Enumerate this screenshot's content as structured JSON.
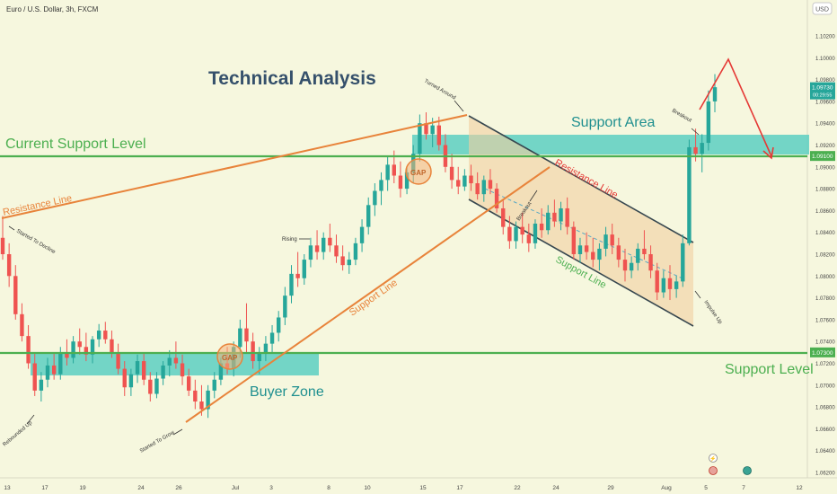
{
  "header": {
    "symbol_title": "Euro / U.S. Dollar, 3h, FXCM",
    "currency": "USD"
  },
  "chart_data": {
    "type": "candlestick",
    "title": "Technical Analysis",
    "x_ticks": [
      "13",
      "17",
      "19",
      "24",
      "26",
      "Jul",
      "3",
      "8",
      "10",
      "15",
      "17",
      "22",
      "24",
      "29",
      "Aug",
      "5",
      "7",
      "12"
    ],
    "y_ticks": [
      1.062,
      1.064,
      1.066,
      1.068,
      1.07,
      1.072,
      1.074,
      1.076,
      1.078,
      1.08,
      1.082,
      1.084,
      1.086,
      1.088,
      1.09,
      1.092,
      1.094,
      1.096,
      1.098,
      1.1,
      1.102
    ],
    "ylim": [
      1.061,
      1.1035
    ],
    "last_price": 1.0973,
    "last_price_label": "1.09730",
    "countdown_label": "00:29:55",
    "current_support_price": 1.091,
    "current_support_price_label": "1.09100",
    "support_price": 1.073,
    "support_price_label": "1.07300",
    "candles": [
      {
        "o": 1.0835,
        "h": 1.0855,
        "l": 1.0815,
        "c": 1.082
      },
      {
        "o": 1.082,
        "h": 1.083,
        "l": 1.079,
        "c": 1.08
      },
      {
        "o": 1.08,
        "h": 1.081,
        "l": 1.076,
        "c": 1.0765
      },
      {
        "o": 1.0765,
        "h": 1.0775,
        "l": 1.074,
        "c": 1.0745
      },
      {
        "o": 1.0745,
        "h": 1.0755,
        "l": 1.0715,
        "c": 1.072
      },
      {
        "o": 1.072,
        "h": 1.073,
        "l": 1.069,
        "c": 1.0695
      },
      {
        "o": 1.0695,
        "h": 1.0712,
        "l": 1.0685,
        "c": 1.0705
      },
      {
        "o": 1.0705,
        "h": 1.0725,
        "l": 1.0698,
        "c": 1.0718
      },
      {
        "o": 1.0718,
        "h": 1.073,
        "l": 1.0705,
        "c": 1.071
      },
      {
        "o": 1.071,
        "h": 1.0735,
        "l": 1.0705,
        "c": 1.073
      },
      {
        "o": 1.073,
        "h": 1.0742,
        "l": 1.0718,
        "c": 1.0725
      },
      {
        "o": 1.0725,
        "h": 1.0745,
        "l": 1.072,
        "c": 1.074
      },
      {
        "o": 1.074,
        "h": 1.0752,
        "l": 1.0728,
        "c": 1.0735
      },
      {
        "o": 1.0735,
        "h": 1.0748,
        "l": 1.0722,
        "c": 1.0728
      },
      {
        "o": 1.0728,
        "h": 1.0745,
        "l": 1.072,
        "c": 1.0742
      },
      {
        "o": 1.0742,
        "h": 1.0756,
        "l": 1.0735,
        "c": 1.075
      },
      {
        "o": 1.075,
        "h": 1.0758,
        "l": 1.0738,
        "c": 1.0742
      },
      {
        "o": 1.0742,
        "h": 1.075,
        "l": 1.0725,
        "c": 1.073
      },
      {
        "o": 1.073,
        "h": 1.0738,
        "l": 1.071,
        "c": 1.0715
      },
      {
        "o": 1.0715,
        "h": 1.0722,
        "l": 1.069,
        "c": 1.0698
      },
      {
        "o": 1.0698,
        "h": 1.0715,
        "l": 1.069,
        "c": 1.071
      },
      {
        "o": 1.071,
        "h": 1.0728,
        "l": 1.0702,
        "c": 1.0722
      },
      {
        "o": 1.0722,
        "h": 1.073,
        "l": 1.07,
        "c": 1.0705
      },
      {
        "o": 1.0705,
        "h": 1.0712,
        "l": 1.0685,
        "c": 1.0692
      },
      {
        "o": 1.0692,
        "h": 1.0712,
        "l": 1.0688,
        "c": 1.0706
      },
      {
        "o": 1.0706,
        "h": 1.0722,
        "l": 1.07,
        "c": 1.0718
      },
      {
        "o": 1.0718,
        "h": 1.0732,
        "l": 1.0708,
        "c": 1.0725
      },
      {
        "o": 1.0725,
        "h": 1.074,
        "l": 1.0715,
        "c": 1.072
      },
      {
        "o": 1.072,
        "h": 1.0728,
        "l": 1.07,
        "c": 1.0708
      },
      {
        "o": 1.0708,
        "h": 1.0715,
        "l": 1.069,
        "c": 1.0695
      },
      {
        "o": 1.0695,
        "h": 1.0705,
        "l": 1.0678,
        "c": 1.0685
      },
      {
        "o": 1.0685,
        "h": 1.07,
        "l": 1.0672,
        "c": 1.0678
      },
      {
        "o": 1.0678,
        "h": 1.07,
        "l": 1.067,
        "c": 1.0695
      },
      {
        "o": 1.0695,
        "h": 1.0712,
        "l": 1.0688,
        "c": 1.0705
      },
      {
        "o": 1.0705,
        "h": 1.0725,
        "l": 1.07,
        "c": 1.072
      },
      {
        "o": 1.072,
        "h": 1.0735,
        "l": 1.071,
        "c": 1.0715
      },
      {
        "o": 1.0715,
        "h": 1.074,
        "l": 1.0708,
        "c": 1.0735
      },
      {
        "o": 1.0735,
        "h": 1.076,
        "l": 1.0725,
        "c": 1.0752
      },
      {
        "o": 1.0752,
        "h": 1.0775,
        "l": 1.073,
        "c": 1.074
      },
      {
        "o": 1.074,
        "h": 1.0748,
        "l": 1.0715,
        "c": 1.0722
      },
      {
        "o": 1.0722,
        "h": 1.0735,
        "l": 1.071,
        "c": 1.073
      },
      {
        "o": 1.073,
        "h": 1.0745,
        "l": 1.0722,
        "c": 1.0738
      },
      {
        "o": 1.0738,
        "h": 1.0755,
        "l": 1.073,
        "c": 1.0748
      },
      {
        "o": 1.0748,
        "h": 1.0768,
        "l": 1.074,
        "c": 1.0762
      },
      {
        "o": 1.0762,
        "h": 1.079,
        "l": 1.0755,
        "c": 1.0782
      },
      {
        "o": 1.0782,
        "h": 1.081,
        "l": 1.0775,
        "c": 1.0802
      },
      {
        "o": 1.0802,
        "h": 1.0822,
        "l": 1.079,
        "c": 1.0798
      },
      {
        "o": 1.0798,
        "h": 1.082,
        "l": 1.0792,
        "c": 1.0815
      },
      {
        "o": 1.0815,
        "h": 1.0835,
        "l": 1.0808,
        "c": 1.0828
      },
      {
        "o": 1.0828,
        "h": 1.0842,
        "l": 1.0815,
        "c": 1.0822
      },
      {
        "o": 1.0822,
        "h": 1.084,
        "l": 1.0815,
        "c": 1.0835
      },
      {
        "o": 1.0835,
        "h": 1.0848,
        "l": 1.0822,
        "c": 1.0828
      },
      {
        "o": 1.0828,
        "h": 1.0838,
        "l": 1.0812,
        "c": 1.0818
      },
      {
        "o": 1.0818,
        "h": 1.0828,
        "l": 1.0805,
        "c": 1.081
      },
      {
        "o": 1.081,
        "h": 1.0822,
        "l": 1.0802,
        "c": 1.0815
      },
      {
        "o": 1.0815,
        "h": 1.0835,
        "l": 1.081,
        "c": 1.083
      },
      {
        "o": 1.083,
        "h": 1.0852,
        "l": 1.0822,
        "c": 1.0845
      },
      {
        "o": 1.0845,
        "h": 1.0872,
        "l": 1.0838,
        "c": 1.0865
      },
      {
        "o": 1.0865,
        "h": 1.0885,
        "l": 1.0855,
        "c": 1.0878
      },
      {
        "o": 1.0878,
        "h": 1.0895,
        "l": 1.0865,
        "c": 1.0888
      },
      {
        "o": 1.0888,
        "h": 1.091,
        "l": 1.0878,
        "c": 1.0902
      },
      {
        "o": 1.0902,
        "h": 1.0915,
        "l": 1.0885,
        "c": 1.0892
      },
      {
        "o": 1.0892,
        "h": 1.0905,
        "l": 1.0872,
        "c": 1.088
      },
      {
        "o": 1.088,
        "h": 1.09,
        "l": 1.0875,
        "c": 1.0895
      },
      {
        "o": 1.0895,
        "h": 1.092,
        "l": 1.0885,
        "c": 1.0912
      },
      {
        "o": 1.0912,
        "h": 1.0948,
        "l": 1.0905,
        "c": 1.094
      },
      {
        "o": 1.094,
        "h": 1.095,
        "l": 1.0925,
        "c": 1.093
      },
      {
        "o": 1.093,
        "h": 1.0945,
        "l": 1.0918,
        "c": 1.0938
      },
      {
        "o": 1.0938,
        "h": 1.0946,
        "l": 1.0915,
        "c": 1.092
      },
      {
        "o": 1.092,
        "h": 1.093,
        "l": 1.0895,
        "c": 1.09
      },
      {
        "o": 1.09,
        "h": 1.0912,
        "l": 1.088,
        "c": 1.0888
      },
      {
        "o": 1.0888,
        "h": 1.09,
        "l": 1.0875,
        "c": 1.0882
      },
      {
        "o": 1.0882,
        "h": 1.0898,
        "l": 1.0878,
        "c": 1.0892
      },
      {
        "o": 1.0892,
        "h": 1.0902,
        "l": 1.0878,
        "c": 1.0885
      },
      {
        "o": 1.0885,
        "h": 1.0895,
        "l": 1.087,
        "c": 1.0875
      },
      {
        "o": 1.0875,
        "h": 1.0892,
        "l": 1.0868,
        "c": 1.0888
      },
      {
        "o": 1.0888,
        "h": 1.0898,
        "l": 1.0875,
        "c": 1.088
      },
      {
        "o": 1.088,
        "h": 1.0885,
        "l": 1.0858,
        "c": 1.0862
      },
      {
        "o": 1.0862,
        "h": 1.087,
        "l": 1.0838,
        "c": 1.0845
      },
      {
        "o": 1.0845,
        "h": 1.0855,
        "l": 1.0825,
        "c": 1.0832
      },
      {
        "o": 1.0832,
        "h": 1.085,
        "l": 1.0825,
        "c": 1.0845
      },
      {
        "o": 1.0845,
        "h": 1.0858,
        "l": 1.083,
        "c": 1.0838
      },
      {
        "o": 1.0838,
        "h": 1.0848,
        "l": 1.0822,
        "c": 1.083
      },
      {
        "o": 1.083,
        "h": 1.0852,
        "l": 1.0825,
        "c": 1.0848
      },
      {
        "o": 1.0848,
        "h": 1.0862,
        "l": 1.0835,
        "c": 1.0842
      },
      {
        "o": 1.0842,
        "h": 1.0865,
        "l": 1.0838,
        "c": 1.0858
      },
      {
        "o": 1.0858,
        "h": 1.087,
        "l": 1.0845,
        "c": 1.085
      },
      {
        "o": 1.085,
        "h": 1.0868,
        "l": 1.0842,
        "c": 1.0862
      },
      {
        "o": 1.0862,
        "h": 1.0872,
        "l": 1.0838,
        "c": 1.0845
      },
      {
        "o": 1.0845,
        "h": 1.085,
        "l": 1.0815,
        "c": 1.082
      },
      {
        "o": 1.082,
        "h": 1.0835,
        "l": 1.0812,
        "c": 1.0828
      },
      {
        "o": 1.0828,
        "h": 1.084,
        "l": 1.0815,
        "c": 1.0822
      },
      {
        "o": 1.0822,
        "h": 1.0835,
        "l": 1.0808,
        "c": 1.0815
      },
      {
        "o": 1.0815,
        "h": 1.083,
        "l": 1.0805,
        "c": 1.0825
      },
      {
        "o": 1.0825,
        "h": 1.0845,
        "l": 1.0818,
        "c": 1.0838
      },
      {
        "o": 1.0838,
        "h": 1.0848,
        "l": 1.082,
        "c": 1.0828
      },
      {
        "o": 1.0828,
        "h": 1.0835,
        "l": 1.0808,
        "c": 1.0815
      },
      {
        "o": 1.0815,
        "h": 1.0825,
        "l": 1.0795,
        "c": 1.0805
      },
      {
        "o": 1.0805,
        "h": 1.0818,
        "l": 1.0798,
        "c": 1.0812
      },
      {
        "o": 1.0812,
        "h": 1.083,
        "l": 1.0805,
        "c": 1.0825
      },
      {
        "o": 1.0825,
        "h": 1.0842,
        "l": 1.0815,
        "c": 1.082
      },
      {
        "o": 1.082,
        "h": 1.0828,
        "l": 1.0798,
        "c": 1.0805
      },
      {
        "o": 1.0805,
        "h": 1.0812,
        "l": 1.0778,
        "c": 1.0785
      },
      {
        "o": 1.0785,
        "h": 1.0805,
        "l": 1.078,
        "c": 1.0798
      },
      {
        "o": 1.0798,
        "h": 1.081,
        "l": 1.0778,
        "c": 1.0788
      },
      {
        "o": 1.0788,
        "h": 1.08,
        "l": 1.078,
        "c": 1.0795
      },
      {
        "o": 1.0795,
        "h": 1.0838,
        "l": 1.079,
        "c": 1.083
      },
      {
        "o": 1.083,
        "h": 1.0925,
        "l": 1.0828,
        "c": 1.0918
      },
      {
        "o": 1.0918,
        "h": 1.0935,
        "l": 1.0905,
        "c": 1.0912
      },
      {
        "o": 1.0912,
        "h": 1.093,
        "l": 1.0895,
        "c": 1.0922
      },
      {
        "o": 1.0922,
        "h": 1.097,
        "l": 1.0915,
        "c": 1.096
      },
      {
        "o": 1.096,
        "h": 1.0985,
        "l": 1.095,
        "c": 1.0973
      }
    ]
  },
  "annotations": {
    "current_support_level": "Current Support Level",
    "support_area": "Support Area",
    "resistance_line_left": "Resistance Line",
    "resistance_line_channel": "Resistance Line",
    "support_line_channel": "Support Line",
    "support_line_rising": "Support Line",
    "buyer_zone": "Buyer Zone",
    "support_level": "Support Level",
    "gap_1": "GAP",
    "gap_2": "GAP",
    "started_to_decline": "Started To Decline",
    "rebounded_up": "Rebounded Up",
    "started_to_grow": "Started To Grow",
    "rising": "Rising",
    "turned_around": "Turned Around",
    "breakout_channel": "Breakout",
    "breakout_right": "Breakout",
    "impulse_up": "Impulse Up"
  },
  "colors": {
    "background": "#f6f7de",
    "bull": "#26a69a",
    "bear": "#ef5350",
    "zone": "#5ccfc2",
    "green_line": "#4caf50",
    "orange_line": "#e8833a",
    "channel_fill": "#f2cfa0",
    "title": "#35506b",
    "arrow_red": "#e53935"
  }
}
